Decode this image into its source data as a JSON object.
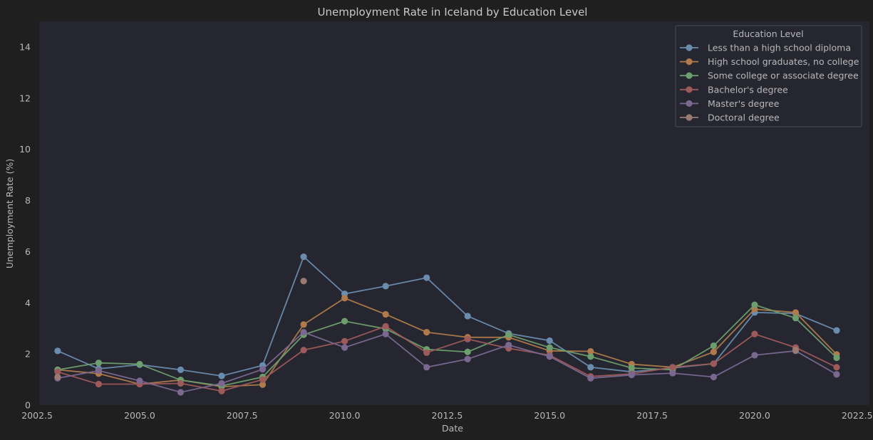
{
  "chart_data": {
    "type": "line",
    "title": "Unemployment Rate in Iceland by Education Level",
    "xlabel": "Date",
    "ylabel": "Unemployment Rate (%)",
    "xlim": [
      2002.55,
      2022.8
    ],
    "ylim": [
      0,
      15
    ],
    "xticks": [
      2002.5,
      2005.0,
      2007.5,
      2010.0,
      2012.5,
      2015.0,
      2017.5,
      2020.0,
      2022.5
    ],
    "xtick_labels": [
      "2002.5",
      "2005.0",
      "2007.5",
      "2010.0",
      "2012.5",
      "2015.0",
      "2017.5",
      "2020.0",
      "2022.5"
    ],
    "yticks": [
      0,
      2,
      4,
      6,
      8,
      10,
      12,
      14
    ],
    "ytick_labels": [
      "0",
      "2",
      "4",
      "6",
      "8",
      "10",
      "12",
      "14"
    ],
    "grid": false,
    "legend": {
      "title": "Education Level",
      "placement": "top-right"
    },
    "series": [
      {
        "name": "Less than a high school diploma",
        "color": "#6a8caf",
        "x": [
          2003,
          2004,
          2005,
          2006,
          2007,
          2008,
          2009,
          2010,
          2011,
          2012,
          2013,
          2014,
          2015,
          2016,
          2017,
          2018,
          2019,
          2020,
          2021,
          2022
        ],
        "y": [
          2.12,
          1.42,
          1.58,
          1.38,
          1.14,
          1.55,
          5.8,
          4.35,
          4.65,
          4.98,
          3.48,
          2.8,
          2.52,
          1.48,
          1.3,
          1.45,
          1.62,
          3.62,
          3.58,
          2.92
        ]
      },
      {
        "name": "High school graduates, no college",
        "color": "#b07a4a",
        "x": [
          2003,
          2004,
          2005,
          2006,
          2007,
          2008,
          2009,
          2010,
          2011,
          2012,
          2013,
          2014,
          2015,
          2016,
          2017,
          2018,
          2019,
          2020,
          2021,
          2022
        ],
        "y": [
          1.38,
          1.23,
          0.82,
          0.98,
          0.72,
          0.8,
          3.15,
          4.18,
          3.55,
          2.85,
          2.65,
          2.65,
          2.12,
          2.1,
          1.6,
          1.48,
          2.08,
          3.75,
          3.62,
          1.98
        ]
      },
      {
        "name": "Some college or associate degree",
        "color": "#6d9e6d",
        "x": [
          2003,
          2004,
          2005,
          2006,
          2007,
          2008,
          2009,
          2010,
          2011,
          2012,
          2013,
          2014,
          2015,
          2016,
          2017,
          2018,
          2019,
          2020,
          2021,
          2022
        ],
        "y": [
          1.38,
          1.65,
          1.6,
          0.98,
          0.75,
          1.1,
          2.75,
          3.28,
          2.98,
          2.18,
          2.08,
          2.75,
          2.25,
          1.9,
          1.45,
          1.38,
          2.32,
          3.92,
          3.4,
          1.85
        ]
      },
      {
        "name": "Bachelor's degree",
        "color": "#9e5a5a",
        "x": [
          2003,
          2004,
          2005,
          2006,
          2007,
          2008,
          2009,
          2010,
          2011,
          2012,
          2013,
          2014,
          2015,
          2016,
          2017,
          2018,
          2019,
          2020,
          2021,
          2022
        ],
        "y": [
          1.3,
          0.82,
          0.82,
          0.85,
          0.55,
          1.0,
          2.15,
          2.5,
          3.08,
          2.05,
          2.58,
          2.22,
          1.95,
          1.12,
          1.22,
          1.48,
          1.62,
          2.78,
          2.25,
          1.48
        ]
      },
      {
        "name": "Master's degree",
        "color": "#7a6890",
        "x": [
          2003,
          2004,
          2005,
          2006,
          2007,
          2008,
          2009,
          2010,
          2011,
          2012,
          2013,
          2014,
          2015,
          2016,
          2017,
          2018,
          2019,
          2020,
          2021,
          2022
        ],
        "y": [
          1.05,
          1.35,
          0.95,
          0.5,
          0.85,
          1.4,
          2.85,
          2.25,
          2.78,
          1.48,
          1.8,
          2.35,
          1.9,
          1.05,
          1.18,
          1.25,
          1.1,
          1.95,
          2.12,
          1.2
        ]
      },
      {
        "name": "Doctoral degree",
        "color": "#9a7a72",
        "x": [
          2003,
          2009,
          2021
        ],
        "y": [
          1.1,
          4.85,
          2.15
        ]
      }
    ]
  }
}
